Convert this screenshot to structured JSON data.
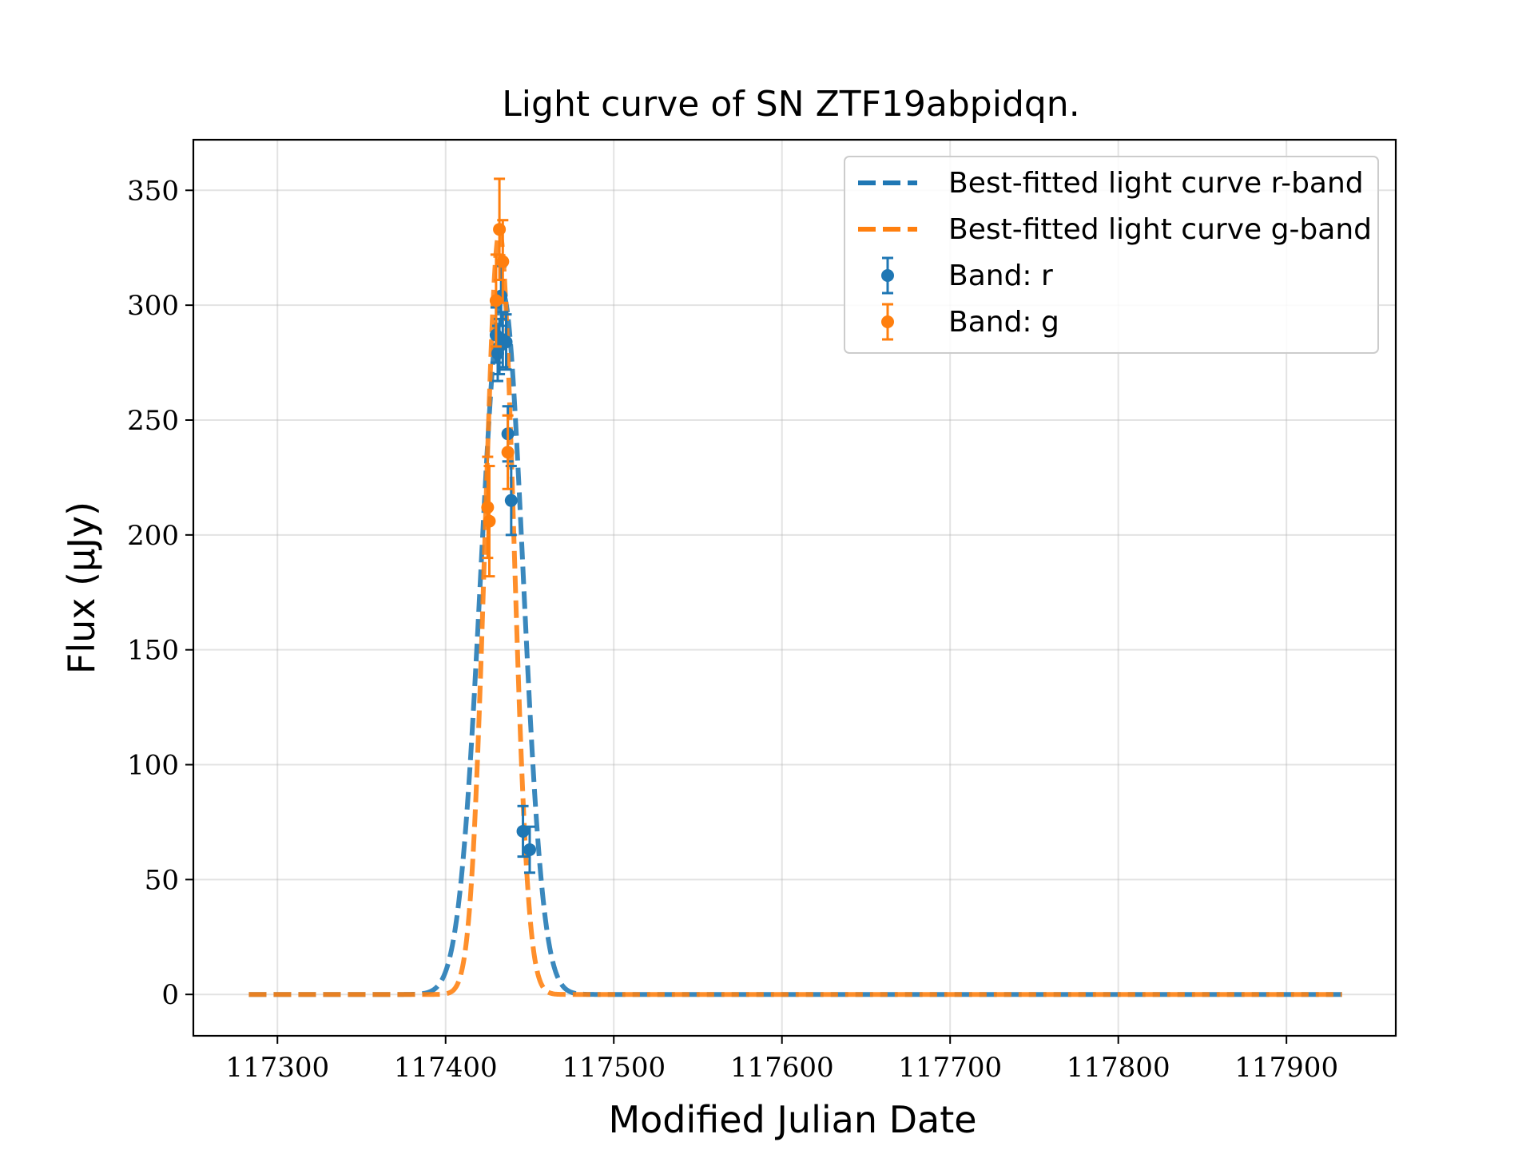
{
  "chart_data": {
    "type": "line",
    "title": "Light curve of SN ZTF19abpidqn.",
    "xlabel": "Modified Julian Date",
    "ylabel": "Flux (μJy)",
    "xlim": [
      117250,
      117965
    ],
    "ylim": [
      -18,
      372
    ],
    "x_ticks": [
      117300,
      117400,
      117500,
      117600,
      117700,
      117800,
      117900
    ],
    "y_ticks": [
      0,
      50,
      100,
      150,
      200,
      250,
      300,
      350
    ],
    "grid": true,
    "legend_position": "top-right",
    "colors": {
      "r": "#1f77b4",
      "g": "#ff7f0e"
    },
    "fits": [
      {
        "name": "Best-fitted light curve r-band",
        "band": "r",
        "color": "#1f77b4",
        "x_range": [
          117283,
          117933
        ],
        "peak_x": 117434,
        "peak_y": 305,
        "rise_tau": 13,
        "fall_tau": 12
      },
      {
        "name": "Best-fitted light curve g-band",
        "band": "g",
        "color": "#ff7f0e",
        "x_range": [
          117283,
          117933
        ],
        "peak_x": 117432,
        "peak_y": 332,
        "rise_tau": 8.5,
        "fall_tau": 8.5
      }
    ],
    "series": [
      {
        "name": "Band: r",
        "color": "#1f77b4",
        "points": [
          {
            "x": 117430,
            "y": 287,
            "err": 12
          },
          {
            "x": 117431,
            "y": 279,
            "err": 12
          },
          {
            "x": 117432,
            "y": 282,
            "err": 12
          },
          {
            "x": 117433,
            "y": 304,
            "err": 13
          },
          {
            "x": 117434,
            "y": 285,
            "err": 12
          },
          {
            "x": 117436,
            "y": 284,
            "err": 12
          },
          {
            "x": 117437,
            "y": 244,
            "err": 12
          },
          {
            "x": 117439,
            "y": 215,
            "err": 15
          },
          {
            "x": 117446,
            "y": 71,
            "err": 11
          },
          {
            "x": 117450,
            "y": 63,
            "err": 10
          }
        ]
      },
      {
        "name": "Band: g",
        "color": "#ff7f0e",
        "points": [
          {
            "x": 117425,
            "y": 212,
            "err": 22
          },
          {
            "x": 117426,
            "y": 206,
            "err": 24
          },
          {
            "x": 117430,
            "y": 302,
            "err": 20
          },
          {
            "x": 117432,
            "y": 333,
            "err": 22
          },
          {
            "x": 117434,
            "y": 319,
            "err": 18
          },
          {
            "x": 117437,
            "y": 236,
            "err": 16
          }
        ]
      }
    ]
  }
}
